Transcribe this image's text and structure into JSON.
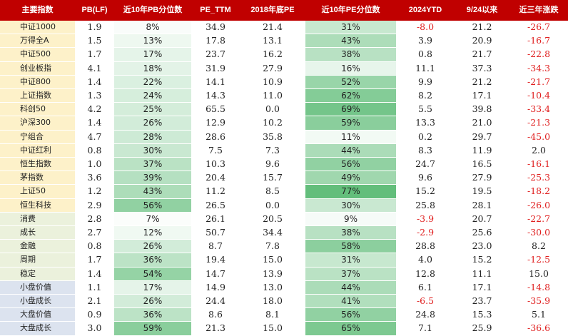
{
  "headers": [
    "主要指数",
    "PB(LF)",
    "近10年PB分位数",
    "PE_TTM",
    "2018年底PE",
    "近10年PE分位数",
    "2024YTD",
    "9/24以来",
    "近三年涨跌"
  ],
  "group_colors": {
    "index": "#fdf1c9",
    "style": "#ebf1dc",
    "size": "#dce3ef"
  },
  "percentile_scale": {
    "min_color": "#ffffff",
    "max_color": "#63be7b"
  },
  "rows": [
    {
      "group": "index",
      "name": "中证1000",
      "pb": "1.9",
      "pb_pct": "8%",
      "pb_pct_val": 8,
      "pe": "34.9",
      "pe2018": "21.4",
      "pe_pct": "31%",
      "pe_pct_val": 31,
      "ytd": "-8.0",
      "since924": "21.2",
      "three_year": "-26.7"
    },
    {
      "group": "index",
      "name": "万得全A",
      "pb": "1.5",
      "pb_pct": "13%",
      "pb_pct_val": 13,
      "pe": "17.8",
      "pe2018": "13.1",
      "pe_pct": "43%",
      "pe_pct_val": 43,
      "ytd": "3.9",
      "since924": "20.9",
      "three_year": "-16.7"
    },
    {
      "group": "index",
      "name": "中证500",
      "pb": "1.7",
      "pb_pct": "17%",
      "pb_pct_val": 17,
      "pe": "23.7",
      "pe2018": "16.2",
      "pe_pct": "38%",
      "pe_pct_val": 38,
      "ytd": "0.8",
      "since924": "21.7",
      "three_year": "-22.8"
    },
    {
      "group": "index",
      "name": "创业板指",
      "pb": "4.1",
      "pb_pct": "18%",
      "pb_pct_val": 18,
      "pe": "31.9",
      "pe2018": "27.9",
      "pe_pct": "16%",
      "pe_pct_val": 16,
      "ytd": "11.1",
      "since924": "37.3",
      "three_year": "-34.3"
    },
    {
      "group": "index",
      "name": "中证800",
      "pb": "1.4",
      "pb_pct": "22%",
      "pb_pct_val": 22,
      "pe": "14.1",
      "pe2018": "10.9",
      "pe_pct": "52%",
      "pe_pct_val": 52,
      "ytd": "9.9",
      "since924": "21.2",
      "three_year": "-21.7"
    },
    {
      "group": "index",
      "name": "上证指数",
      "pb": "1.3",
      "pb_pct": "24%",
      "pb_pct_val": 24,
      "pe": "14.3",
      "pe2018": "11.0",
      "pe_pct": "62%",
      "pe_pct_val": 62,
      "ytd": "8.2",
      "since924": "17.1",
      "three_year": "-10.4"
    },
    {
      "group": "index",
      "name": "科创50",
      "pb": "4.2",
      "pb_pct": "25%",
      "pb_pct_val": 25,
      "pe": "65.5",
      "pe2018": "0.0",
      "pe_pct": "69%",
      "pe_pct_val": 69,
      "ytd": "5.5",
      "since924": "39.8",
      "three_year": "-33.4"
    },
    {
      "group": "index",
      "name": "沪深300",
      "pb": "1.4",
      "pb_pct": "26%",
      "pb_pct_val": 26,
      "pe": "12.9",
      "pe2018": "10.2",
      "pe_pct": "59%",
      "pe_pct_val": 59,
      "ytd": "13.3",
      "since924": "21.0",
      "three_year": "-21.3"
    },
    {
      "group": "index",
      "name": "宁组合",
      "pb": "4.7",
      "pb_pct": "28%",
      "pb_pct_val": 28,
      "pe": "28.6",
      "pe2018": "35.8",
      "pe_pct": "11%",
      "pe_pct_val": 11,
      "ytd": "0.2",
      "since924": "29.7",
      "three_year": "-45.0"
    },
    {
      "group": "index",
      "name": "中证红利",
      "pb": "0.8",
      "pb_pct": "30%",
      "pb_pct_val": 30,
      "pe": "7.5",
      "pe2018": "7.3",
      "pe_pct": "44%",
      "pe_pct_val": 44,
      "ytd": "8.3",
      "since924": "11.9",
      "three_year": "2.0"
    },
    {
      "group": "index",
      "name": "恒生指数",
      "pb": "1.0",
      "pb_pct": "37%",
      "pb_pct_val": 37,
      "pe": "10.3",
      "pe2018": "9.6",
      "pe_pct": "56%",
      "pe_pct_val": 56,
      "ytd": "24.7",
      "since924": "16.5",
      "three_year": "-16.1"
    },
    {
      "group": "index",
      "name": "茅指数",
      "pb": "3.6",
      "pb_pct": "39%",
      "pb_pct_val": 39,
      "pe": "20.4",
      "pe2018": "15.7",
      "pe_pct": "49%",
      "pe_pct_val": 49,
      "ytd": "9.6",
      "since924": "27.9",
      "three_year": "-25.3"
    },
    {
      "group": "index",
      "name": "上证50",
      "pb": "1.2",
      "pb_pct": "43%",
      "pb_pct_val": 43,
      "pe": "11.2",
      "pe2018": "8.5",
      "pe_pct": "77%",
      "pe_pct_val": 77,
      "ytd": "15.2",
      "since924": "19.5",
      "three_year": "-18.2"
    },
    {
      "group": "index",
      "name": "恒生科技",
      "pb": "2.9",
      "pb_pct": "56%",
      "pb_pct_val": 56,
      "pe": "26.5",
      "pe2018": "0.0",
      "pe_pct": "30%",
      "pe_pct_val": 30,
      "ytd": "25.8",
      "since924": "28.1",
      "three_year": "-26.0"
    },
    {
      "group": "style",
      "name": "消费",
      "pb": "2.8",
      "pb_pct": "7%",
      "pb_pct_val": 7,
      "pe": "26.1",
      "pe2018": "20.5",
      "pe_pct": "9%",
      "pe_pct_val": 9,
      "ytd": "-3.9",
      "since924": "20.7",
      "three_year": "-22.7"
    },
    {
      "group": "style",
      "name": "成长",
      "pb": "2.7",
      "pb_pct": "12%",
      "pb_pct_val": 12,
      "pe": "50.7",
      "pe2018": "34.4",
      "pe_pct": "38%",
      "pe_pct_val": 38,
      "ytd": "-2.9",
      "since924": "25.6",
      "three_year": "-30.0"
    },
    {
      "group": "style",
      "name": "金融",
      "pb": "0.8",
      "pb_pct": "26%",
      "pb_pct_val": 26,
      "pe": "8.7",
      "pe2018": "7.8",
      "pe_pct": "58%",
      "pe_pct_val": 58,
      "ytd": "28.8",
      "since924": "23.0",
      "three_year": "8.2"
    },
    {
      "group": "style",
      "name": "周期",
      "pb": "1.7",
      "pb_pct": "36%",
      "pb_pct_val": 36,
      "pe": "19.4",
      "pe2018": "15.0",
      "pe_pct": "31%",
      "pe_pct_val": 31,
      "ytd": "4.0",
      "since924": "15.2",
      "three_year": "-12.5"
    },
    {
      "group": "style",
      "name": "稳定",
      "pb": "1.4",
      "pb_pct": "54%",
      "pb_pct_val": 54,
      "pe": "14.7",
      "pe2018": "13.9",
      "pe_pct": "37%",
      "pe_pct_val": 37,
      "ytd": "12.8",
      "since924": "11.1",
      "three_year": "15.0"
    },
    {
      "group": "size",
      "name": "小盘价值",
      "pb": "1.1",
      "pb_pct": "17%",
      "pb_pct_val": 17,
      "pe": "14.9",
      "pe2018": "13.0",
      "pe_pct": "44%",
      "pe_pct_val": 44,
      "ytd": "6.1",
      "since924": "17.1",
      "three_year": "-14.8"
    },
    {
      "group": "size",
      "name": "小盘成长",
      "pb": "2.1",
      "pb_pct": "26%",
      "pb_pct_val": 26,
      "pe": "24.4",
      "pe2018": "18.0",
      "pe_pct": "41%",
      "pe_pct_val": 41,
      "ytd": "-6.5",
      "since924": "23.7",
      "three_year": "-35.9"
    },
    {
      "group": "size",
      "name": "大盘价值",
      "pb": "0.9",
      "pb_pct": "36%",
      "pb_pct_val": 36,
      "pe": "8.6",
      "pe2018": "8.1",
      "pe_pct": "56%",
      "pe_pct_val": 56,
      "ytd": "24.8",
      "since924": "15.3",
      "three_year": "5.1"
    },
    {
      "group": "size",
      "name": "大盘成长",
      "pb": "3.0",
      "pb_pct": "59%",
      "pb_pct_val": 59,
      "pe": "21.3",
      "pe2018": "15.0",
      "pe_pct": "65%",
      "pe_pct_val": 65,
      "ytd": "7.1",
      "since924": "25.9",
      "three_year": "-36.6"
    }
  ]
}
